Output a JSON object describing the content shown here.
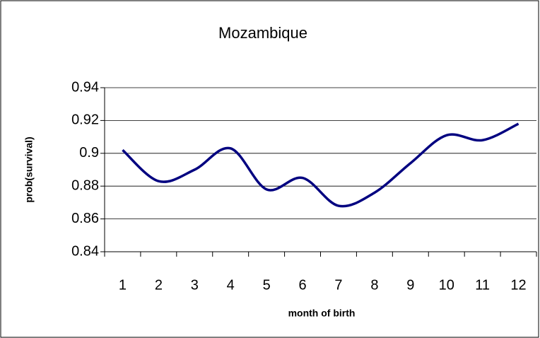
{
  "chart_data": {
    "type": "line",
    "title": "Mozambique",
    "x_label": "month of birth",
    "y_label": "prob(survival)",
    "categories": [
      "1",
      "2",
      "3",
      "4",
      "5",
      "6",
      "7",
      "8",
      "9",
      "10",
      "11",
      "12"
    ],
    "series": [
      {
        "name": "prob(survival)",
        "color": "#000080",
        "values": [
          0.902,
          0.883,
          0.89,
          0.903,
          0.878,
          0.885,
          0.868,
          0.876,
          0.894,
          0.911,
          0.908,
          0.918
        ]
      }
    ],
    "ylim": [
      0.84,
      0.94
    ],
    "yticks": [
      0.84,
      0.86,
      0.88,
      0.9,
      0.92,
      0.94
    ],
    "grid": true,
    "smooth": true
  }
}
